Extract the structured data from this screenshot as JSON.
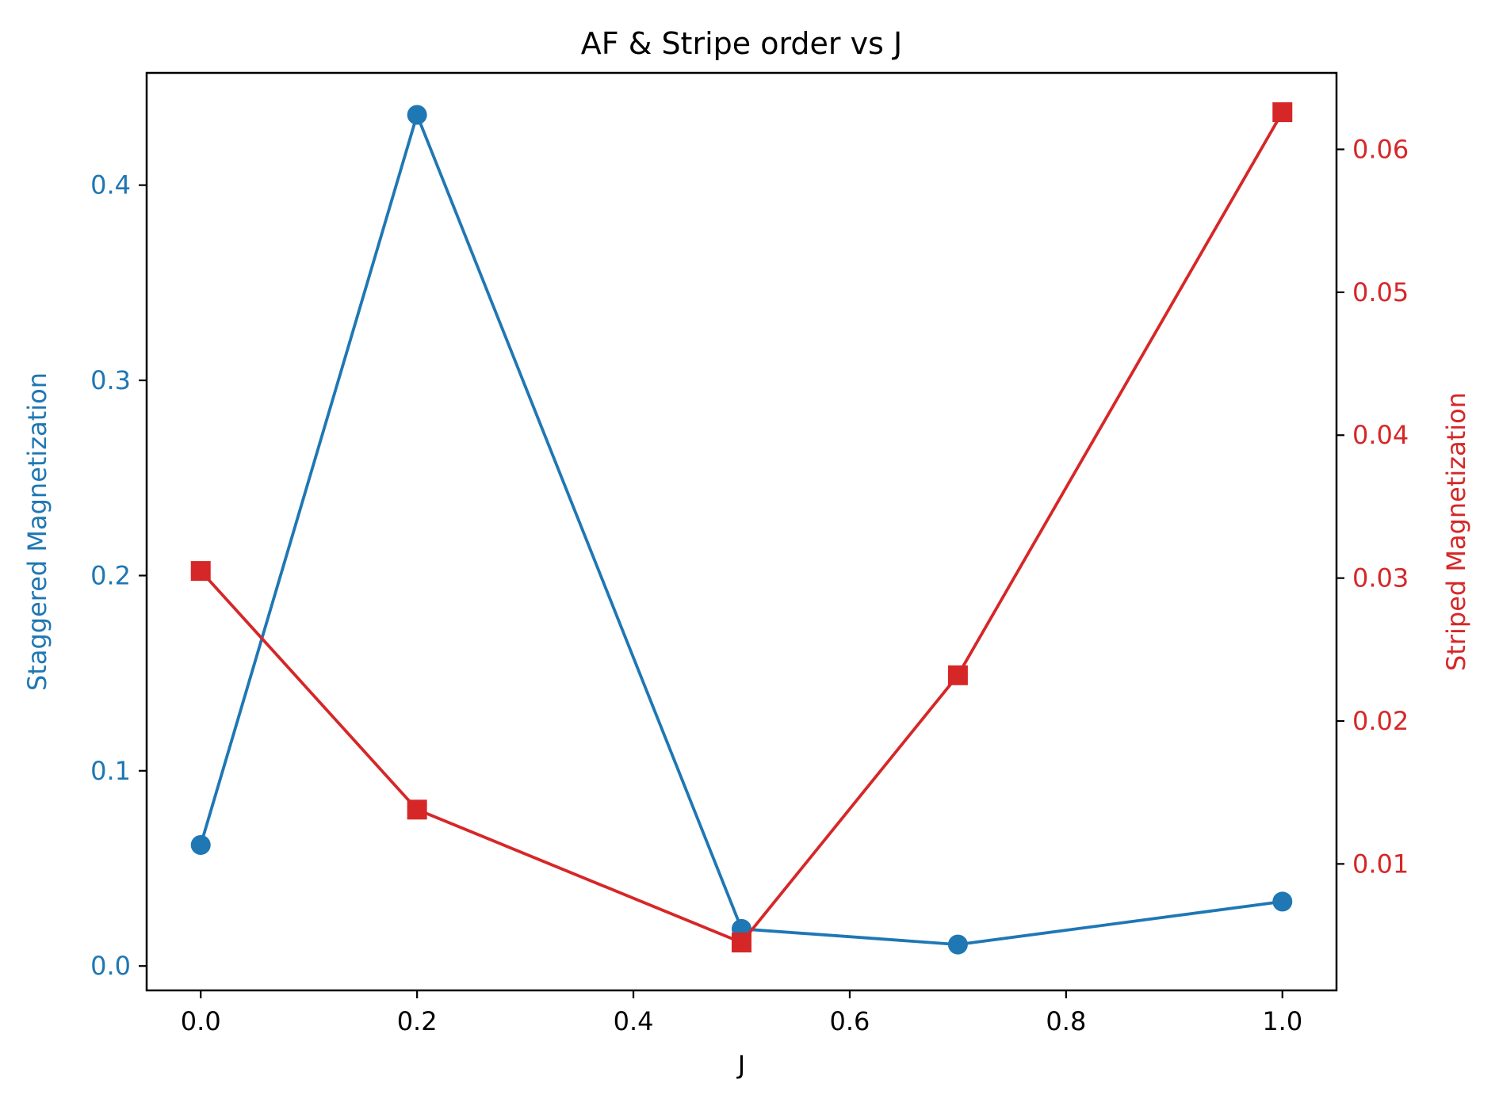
{
  "chart_data": {
    "type": "line",
    "title": "AF & Stripe order vs J",
    "xlabel": "J",
    "ylabel_left": "Staggered Magnetization",
    "ylabel_right": "Striped Magnetization",
    "x": [
      0.0,
      0.2,
      0.5,
      0.7,
      1.0
    ],
    "xlim": [
      -0.05,
      1.05
    ],
    "ylim_left": [
      -0.0125,
      0.4575
    ],
    "ylim_right": [
      0.00115,
      0.06535
    ],
    "x_ticks": [
      0.0,
      0.2,
      0.4,
      0.6,
      0.8,
      1.0
    ],
    "x_tick_labels": [
      "0.0",
      "0.2",
      "0.4",
      "0.6",
      "0.8",
      "1.0"
    ],
    "y_left_ticks": [
      0.0,
      0.1,
      0.2,
      0.3,
      0.4
    ],
    "y_left_tick_labels": [
      "0.0",
      "0.1",
      "0.2",
      "0.3",
      "0.4"
    ],
    "y_right_ticks": [
      0.01,
      0.02,
      0.03,
      0.04,
      0.05,
      0.06
    ],
    "y_right_tick_labels": [
      "0.01",
      "0.02",
      "0.03",
      "0.04",
      "0.05",
      "0.06"
    ],
    "grid": false,
    "series": [
      {
        "axis": "left",
        "marker": "circle",
        "color": "#1f77b4",
        "values": [
          0.062,
          0.436,
          0.019,
          0.011,
          0.033
        ]
      },
      {
        "axis": "right",
        "marker": "square",
        "color": "#d62728",
        "values": [
          0.0305,
          0.0138,
          0.0045,
          0.0232,
          0.0626
        ]
      }
    ]
  }
}
